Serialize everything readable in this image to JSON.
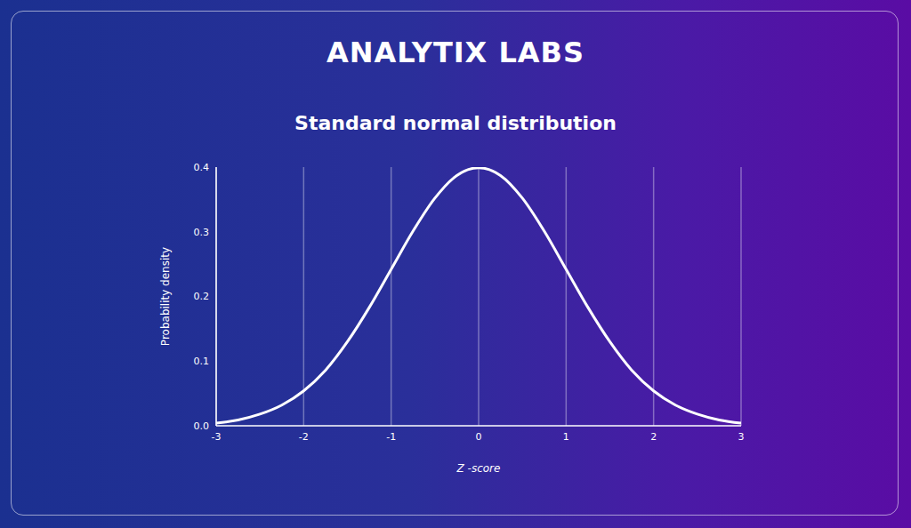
{
  "logo": "ANALYTIX LABS",
  "chart_data": {
    "type": "line",
    "title": "Standard normal distribution",
    "x_label": "Z -score",
    "y_label": "Probability density",
    "x": [
      -3,
      -2.75,
      -2.5,
      -2.25,
      -2,
      -1.75,
      -1.5,
      -1.25,
      -1,
      -0.75,
      -0.5,
      -0.25,
      0,
      0.25,
      0.5,
      0.75,
      1,
      1.25,
      1.5,
      1.75,
      2,
      2.25,
      2.5,
      2.75,
      3
    ],
    "values": [
      0.004,
      0.009,
      0.018,
      0.032,
      0.054,
      0.086,
      0.13,
      0.183,
      0.242,
      0.301,
      0.352,
      0.387,
      0.399,
      0.387,
      0.352,
      0.301,
      0.242,
      0.183,
      0.13,
      0.086,
      0.054,
      0.032,
      0.018,
      0.009,
      0.004
    ],
    "color": "#ffffff",
    "xlim": [
      -3,
      3
    ],
    "xticks": [
      -3,
      -2,
      -1,
      0,
      1,
      2,
      3
    ],
    "ylim": [
      0,
      0.4
    ],
    "yticks": [
      {
        "value": 0,
        "label": "0.0"
      },
      0.1,
      0.2,
      0.3,
      0.4
    ],
    "grid": true
  }
}
